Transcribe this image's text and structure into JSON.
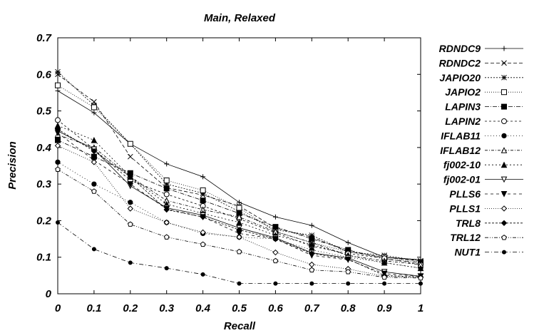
{
  "chart_data": {
    "type": "line",
    "title": "Main, Relaxed",
    "xlabel": "Recall",
    "ylabel": "Precision",
    "xlim": [
      0,
      1
    ],
    "ylim": [
      0,
      0.7
    ],
    "x": [
      0,
      0.1,
      0.2,
      0.3,
      0.4,
      0.5,
      0.6,
      0.7,
      0.8,
      0.9,
      1
    ],
    "x_tick_labels": [
      "0",
      "0.1",
      "0.2",
      "0.3",
      "0.4",
      "0.5",
      "0.6",
      "0.7",
      "0.8",
      "0.9",
      "1"
    ],
    "y_ticks": [
      0,
      0.1,
      0.2,
      0.3,
      0.4,
      0.5,
      0.6,
      0.7
    ],
    "y_tick_labels": [
      "0",
      "0.1",
      "0.2",
      "0.3",
      "0.4",
      "0.5",
      "0.6",
      "0.7"
    ],
    "grid": false,
    "legend_position": "right",
    "series": [
      {
        "name": "RDNDC9",
        "marker": "plus",
        "dash": "",
        "values": [
          0.555,
          0.495,
          0.41,
          0.355,
          0.32,
          0.25,
          0.21,
          0.187,
          0.14,
          0.1,
          0.093
        ]
      },
      {
        "name": "RDNDC2",
        "marker": "x",
        "dash": "5,3",
        "values": [
          0.6,
          0.525,
          0.375,
          0.29,
          0.27,
          0.24,
          0.18,
          0.155,
          0.115,
          0.1,
          0.09
        ]
      },
      {
        "name": "JAPIO20",
        "marker": "star",
        "dash": "2,2",
        "values": [
          0.607,
          0.515,
          0.41,
          0.3,
          0.275,
          0.225,
          0.175,
          0.16,
          0.115,
          0.105,
          0.09
        ]
      },
      {
        "name": "JAPIO2",
        "marker": "square-open",
        "dash": "1,2",
        "values": [
          0.57,
          0.51,
          0.41,
          0.31,
          0.283,
          0.235,
          0.17,
          0.14,
          0.115,
          0.1,
          0.087
        ]
      },
      {
        "name": "LAPIN3",
        "marker": "square-filled",
        "dash": "6,2,1,2",
        "values": [
          0.42,
          0.375,
          0.33,
          0.288,
          0.255,
          0.22,
          0.183,
          0.15,
          0.12,
          0.095,
          0.085
        ]
      },
      {
        "name": "LAPIN2",
        "marker": "circle-open",
        "dash": "3,3",
        "values": [
          0.475,
          0.395,
          0.31,
          0.272,
          0.24,
          0.205,
          0.167,
          0.13,
          0.11,
          0.097,
          0.08
        ]
      },
      {
        "name": "IFLAB11",
        "marker": "circle-filled",
        "dash": "1,3",
        "values": [
          0.36,
          0.3,
          0.25,
          0.195,
          0.165,
          0.155,
          0.15,
          0.12,
          0.1,
          0.085,
          0.07
        ]
      },
      {
        "name": "IFLAB12",
        "marker": "triangle-open",
        "dash": "4,2,1,2",
        "values": [
          0.435,
          0.4,
          0.32,
          0.255,
          0.23,
          0.21,
          0.17,
          0.14,
          0.105,
          0.09,
          0.08
        ]
      },
      {
        "name": "fj002-10",
        "marker": "triangle-filled",
        "dash": "2,3",
        "values": [
          0.46,
          0.42,
          0.32,
          0.245,
          0.22,
          0.195,
          0.16,
          0.135,
          0.105,
          0.085,
          0.07
        ]
      },
      {
        "name": "fj002-01",
        "marker": "triangle-down-open",
        "dash": "",
        "values": [
          0.445,
          0.395,
          0.295,
          0.235,
          0.215,
          0.18,
          0.153,
          0.112,
          0.098,
          0.06,
          0.048
        ]
      },
      {
        "name": "PLLS6",
        "marker": "triangle-down-filled",
        "dash": "4,4",
        "values": [
          0.44,
          0.365,
          0.3,
          0.232,
          0.21,
          0.165,
          0.15,
          0.105,
          0.093,
          0.055,
          0.048
        ]
      },
      {
        "name": "PLLS1",
        "marker": "diamond-open",
        "dash": "1,2",
        "values": [
          0.405,
          0.36,
          0.233,
          0.195,
          0.168,
          0.155,
          0.113,
          0.08,
          0.068,
          0.048,
          0.045
        ]
      },
      {
        "name": "TRL8",
        "marker": "diamond-filled",
        "dash": "3,2",
        "values": [
          0.45,
          0.39,
          0.32,
          0.23,
          0.21,
          0.175,
          0.15,
          0.11,
          0.095,
          0.05,
          0.046
        ]
      },
      {
        "name": "TRL12",
        "marker": "pentagon-open",
        "dash": "5,2,1,2,1,2",
        "values": [
          0.34,
          0.28,
          0.19,
          0.155,
          0.135,
          0.115,
          0.09,
          0.065,
          0.06,
          0.045,
          0.043
        ]
      },
      {
        "name": "NUT1",
        "marker": "dot",
        "dash": "6,3,1,3",
        "values": [
          0.195,
          0.122,
          0.085,
          0.07,
          0.053,
          0.028,
          0.028,
          0.028,
          0.028,
          0.028,
          0.028
        ]
      }
    ]
  }
}
